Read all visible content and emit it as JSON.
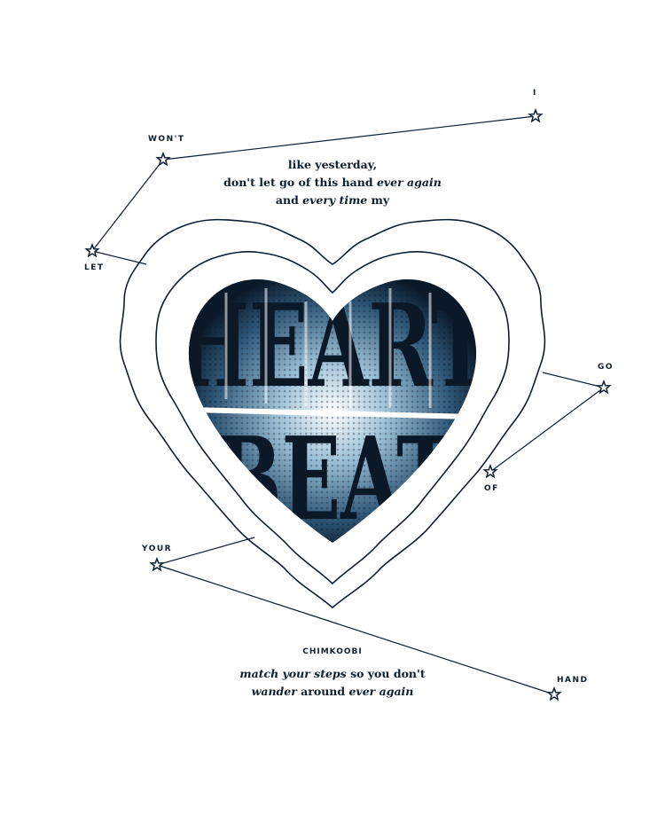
{
  "constellation_words": {
    "i": "I",
    "wont": "WON'T",
    "let": "LET",
    "go": "GO",
    "of": "OF",
    "your": "YOUR",
    "hand": "HAND"
  },
  "heart_title": {
    "line1": "HEART",
    "line2": "BEAT"
  },
  "top_lyrics": {
    "line1": "like yesterday,",
    "line2_a": "don't let go of this hand ",
    "line2_b": "ever again",
    "line3_a": "and ",
    "line3_b": "every time",
    "line3_c": " my"
  },
  "credit": "CHIMKOOBI",
  "bottom_lyrics": {
    "line1_a": "match your steps",
    "line1_b": " so you don't",
    "line2_a": "wander",
    "line2_b": " around ",
    "line2_c": "ever",
    "line2_d": " ",
    "line2_e": "again"
  },
  "colors": {
    "ink": "#0d1e30",
    "heart_fill": "#4b7a99",
    "heart_dark": "#0a1828"
  }
}
